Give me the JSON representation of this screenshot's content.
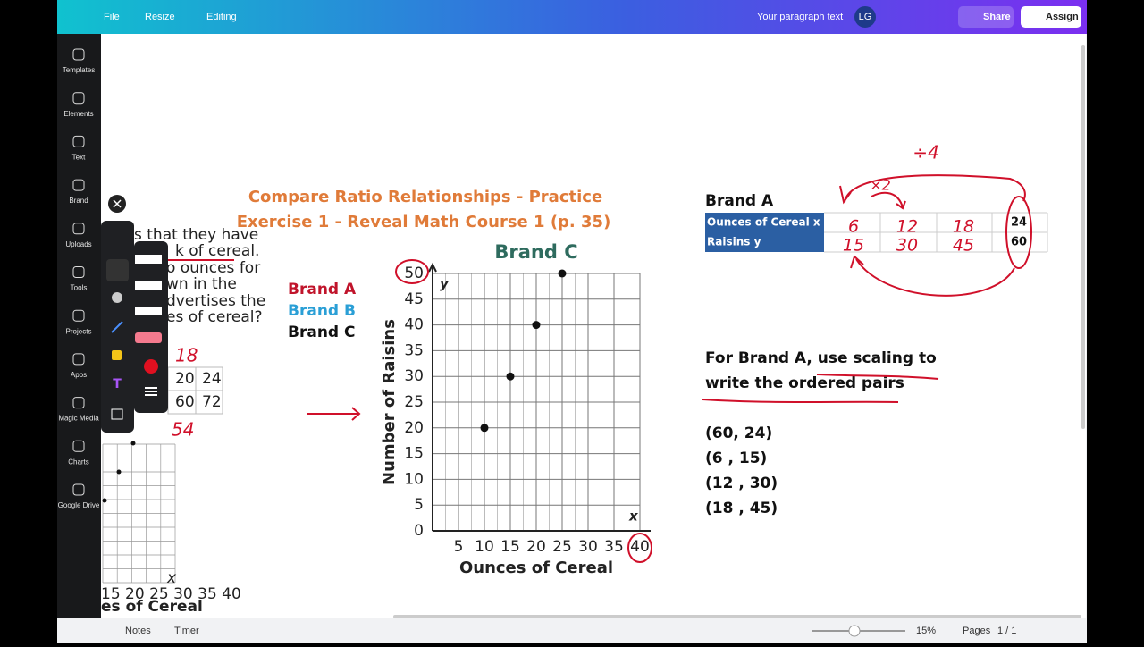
{
  "topbar": {
    "file": "File",
    "resize": "Resize",
    "mode": "Editing",
    "doc_name": "Your paragraph text",
    "avatar": "LG",
    "share": "Share",
    "assign": "Assign"
  },
  "sidebar": [
    "Templates",
    "Elements",
    "Text",
    "Brand",
    "Uploads",
    "Tools",
    "Projects",
    "Apps",
    "Magic Media",
    "Charts",
    "Google Drive"
  ],
  "slide": {
    "title_line1": "Compare Ratio Relationships - Practice",
    "title_line2": "Exercise 1 - Reveal Math Course 1 (p. 35)",
    "brands": [
      "Brand A",
      "Brand B",
      "Brand C"
    ],
    "graph": {
      "title": "Brand C",
      "x_label": "Ounces of Cereal",
      "y_label": "Number of Raisins",
      "x_letter": "x",
      "y_letter": "y",
      "xlim": [
        0,
        40
      ],
      "ylim": [
        0,
        50
      ],
      "xticks": [
        5,
        10,
        15,
        20,
        25,
        30,
        35,
        40
      ],
      "yticks": [
        0,
        5,
        10,
        15,
        20,
        25,
        30,
        35,
        40,
        45,
        50
      ],
      "x": [
        10,
        15,
        20,
        25
      ],
      "y": [
        20,
        30,
        40,
        50
      ]
    },
    "table": {
      "title": "Brand A",
      "row_headers": [
        "Ounces of Cereal x",
        "Raisins y"
      ],
      "printed": [
        "24",
        "60"
      ]
    },
    "instruction_line1": "For Brand A, use scaling to",
    "instruction_line2": "write the ordered pairs",
    "pairs": [
      "(60, 24)",
      "(6 , 15)",
      "(12 , 30)",
      "(18 , 45)"
    ]
  },
  "annotations": {
    "divide": "÷4",
    "times": "×2",
    "row1": [
      "6",
      "12",
      "18"
    ],
    "row2": [
      "15",
      "30",
      "45"
    ],
    "left_top": "18",
    "left_bottom": "54"
  },
  "left_slide": {
    "lines": [
      "s that they have",
      "k of cereal.",
      "o ounces for",
      "wn in the",
      "dvertises the",
      "es of cereal?"
    ],
    "cells": [
      "20",
      "24",
      "60",
      "72"
    ],
    "x_ticks": "15 20 25 30 35 40",
    "x_letter": "x",
    "x_label": "es of Cereal"
  },
  "bottombar": {
    "notes": "Notes",
    "timer": "Timer",
    "zoom": "15%",
    "pages": "Pages",
    "page_count": "1 / 1"
  }
}
